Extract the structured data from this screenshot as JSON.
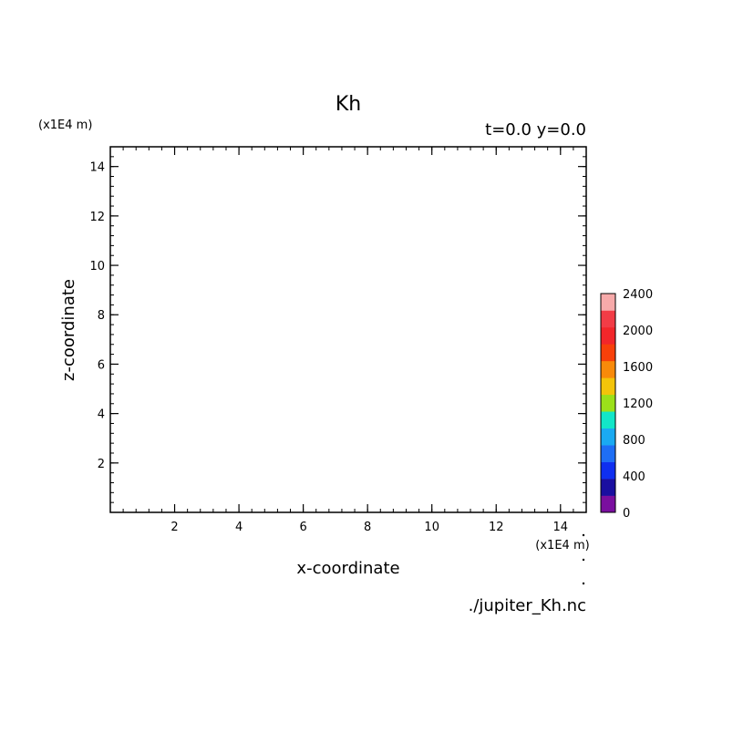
{
  "chart_data": {
    "type": "heatmap",
    "title": "Kh",
    "subtitle": "t=0.0 y=0.0",
    "xlabel": "x-coordinate",
    "ylabel": "z-coordinate",
    "x_unit": "(x1E4 m)",
    "y_unit": "(x1E4 m)",
    "xlim": [
      0,
      14.8
    ],
    "ylim": [
      0,
      14.8
    ],
    "x_ticks": [
      2,
      4,
      6,
      8,
      10,
      12,
      14
    ],
    "y_ticks": [
      2,
      4,
      6,
      8,
      10,
      12,
      14
    ],
    "minor_step": 0.4,
    "grid": false,
    "data": [],
    "colorbar": {
      "levels": [
        0,
        200,
        400,
        600,
        800,
        1000,
        1200,
        1400,
        1600,
        1800,
        2000,
        2200,
        2400
      ],
      "tick_labels": [
        "0",
        "400",
        "800",
        "1200",
        "1600",
        "2000",
        "2400"
      ],
      "colors": [
        "#7a0f9f",
        "#1a0fa0",
        "#0f2ff0",
        "#1e6ef5",
        "#1aaaf2",
        "#12e6c8",
        "#9be01a",
        "#f3c40a",
        "#f88a0a",
        "#f8400a",
        "#f2262a",
        "#f23c46",
        "#f7aaaa"
      ],
      "placement": "right"
    },
    "filename": "./jupiter_Kh.nc"
  }
}
